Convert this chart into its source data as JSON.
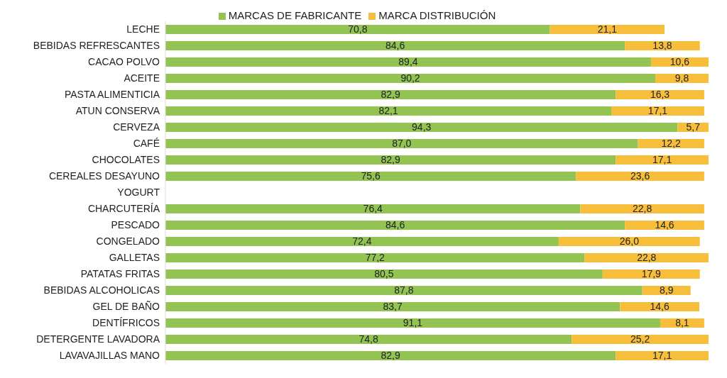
{
  "chart_data": {
    "type": "bar",
    "orientation": "horizontal",
    "stacked": true,
    "legend": "top",
    "grid": false,
    "categories": [
      "LECHE",
      "BEBIDAS REFRESCANTES",
      "CACAO POLVO",
      "ACEITE",
      "PASTA ALIMENTICIA",
      "ATUN CONSERVA",
      "CERVEZA",
      "CAFÉ",
      "CHOCOLATES",
      "CEREALES DESAYUNO",
      "YOGURT",
      "CHARCUTERÍA",
      "PESCADO",
      "CONGELADO",
      "GALLETAS",
      "PATATAS FRITAS",
      "BEBIDAS ALCOHOLICAS",
      "GEL DE BAÑO",
      "DENTÍFRICOS",
      "DETERGENTE LAVADORA",
      "LAVAVAJILLAS MANO"
    ],
    "series": [
      {
        "name": "MARCAS DE FABRICANTE",
        "color": "#92c353",
        "values": [
          70.8,
          84.6,
          89.4,
          90.2,
          82.9,
          82.1,
          94.3,
          87.0,
          82.9,
          75.6,
          null,
          76.4,
          84.6,
          72.4,
          77.2,
          80.5,
          87.8,
          83.7,
          91.1,
          74.8,
          82.9
        ],
        "value_labels": [
          "70,8",
          "84,6",
          "89,4",
          "90,2",
          "82,9",
          "82,1",
          "94,3",
          "87,0",
          "82,9",
          "75,6",
          null,
          "76,4",
          "84,6",
          "72,4",
          "77,2",
          "80,5",
          "87,8",
          "83,7",
          "91,1",
          "74,8",
          "82,9"
        ]
      },
      {
        "name": "MARCA DISTRIBUCIÓN",
        "color": "#f7be3c",
        "values": [
          21.1,
          13.8,
          10.6,
          9.8,
          16.3,
          17.1,
          5.7,
          12.2,
          17.1,
          23.6,
          null,
          22.8,
          14.6,
          26.0,
          22.8,
          17.9,
          8.9,
          14.6,
          8.1,
          25.2,
          17.1
        ],
        "value_labels": [
          "21,1",
          "13,8",
          "10,6",
          "9,8",
          "16,3",
          "17,1",
          "5,7",
          "12,2",
          "17,1",
          "23,6",
          null,
          "22,8",
          "14,6",
          "26,0",
          "22,8",
          "17,9",
          "8,9",
          "14,6",
          "8,1",
          "25,2",
          "17,1"
        ]
      }
    ]
  }
}
